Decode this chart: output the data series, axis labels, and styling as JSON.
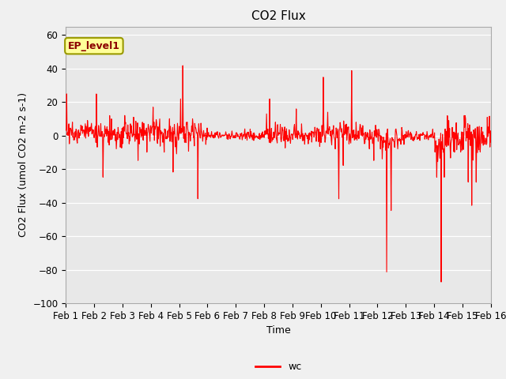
{
  "title": "CO2 Flux",
  "xlabel": "Time",
  "ylabel": "CO2 Flux (umol CO2 m-2 s-1)",
  "ylim": [
    -100,
    65
  ],
  "yticks": [
    -100,
    -80,
    -60,
    -40,
    -20,
    0,
    20,
    40,
    60
  ],
  "line_color": "#FF0000",
  "line_width": 0.8,
  "fig_bg_color": "#F0F0F0",
  "ax_bg_color": "#E8E8E8",
  "legend_label": "wc",
  "annotation_text": "EP_level1",
  "annotation_bg": "#FFFF99",
  "annotation_border": "#999900",
  "title_fontsize": 11,
  "label_fontsize": 9,
  "tick_fontsize": 8.5
}
